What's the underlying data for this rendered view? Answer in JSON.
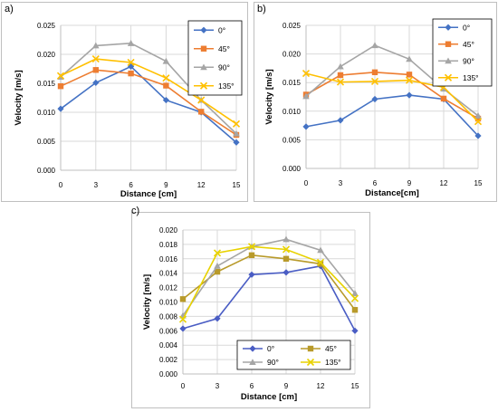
{
  "panel_labels": [
    "a)",
    "b)",
    "c)"
  ],
  "colors": {
    "0°": "#4472C4",
    "45°": "#ED7D31",
    "90°": "#A5A5A5",
    "135°": "#FFC000",
    "c_0°": "#4A5DC4",
    "c_45°": "#B89A2A",
    "c_90°": "#A5A5A5",
    "c_135°": "#E8D200",
    "grid": "#d9d9d9"
  },
  "chart_data": [
    {
      "type": "line",
      "label": "a)",
      "xlabel": "Distance [cm]",
      "ylabel": "Velocity [m/s]",
      "x": [
        0,
        3,
        6,
        9,
        12,
        15
      ],
      "xlim": [
        0,
        15
      ],
      "ylim": [
        0,
        0.025
      ],
      "yticks": [
        "0.000",
        "0.005",
        "0.010",
        "0.015",
        "0.020",
        "0.025"
      ],
      "grid": true,
      "legend": "top-right",
      "series": [
        {
          "name": "0°",
          "marker": "diamond",
          "values": [
            0.0106,
            0.0151,
            0.0179,
            0.0121,
            0.01,
            0.0048
          ]
        },
        {
          "name": "45°",
          "marker": "square",
          "values": [
            0.0145,
            0.0173,
            0.0167,
            0.0146,
            0.0101,
            0.0061
          ]
        },
        {
          "name": "90°",
          "marker": "triangle",
          "values": [
            0.0161,
            0.0215,
            0.0219,
            0.0188,
            0.0121,
            0.0063
          ]
        },
        {
          "name": "135°",
          "marker": "x",
          "values": [
            0.0163,
            0.0192,
            0.0186,
            0.0159,
            0.0121,
            0.008
          ]
        }
      ]
    },
    {
      "type": "line",
      "label": "b)",
      "xlabel": "Distance[cm]",
      "ylabel": "Velocity [m/s]",
      "x": [
        0,
        3,
        6,
        9,
        12,
        15
      ],
      "xlim": [
        0,
        15
      ],
      "ylim": [
        0,
        0.025
      ],
      "yticks": [
        "0.000",
        "0.005",
        "0.010",
        "0.015",
        "0.020",
        "0.025"
      ],
      "grid": true,
      "legend": "top-right",
      "series": [
        {
          "name": "0°",
          "marker": "diamond",
          "values": [
            0.0073,
            0.0084,
            0.0121,
            0.0128,
            0.0121,
            0.0057
          ]
        },
        {
          "name": "45°",
          "marker": "square",
          "values": [
            0.0129,
            0.0163,
            0.0168,
            0.0164,
            0.0122,
            0.0087
          ]
        },
        {
          "name": "90°",
          "marker": "triangle",
          "values": [
            0.0126,
            0.0178,
            0.0215,
            0.0191,
            0.0139,
            0.0092
          ]
        },
        {
          "name": "135°",
          "marker": "x",
          "values": [
            0.0166,
            0.0151,
            0.0152,
            0.0154,
            0.0142,
            0.0082
          ]
        }
      ]
    },
    {
      "type": "line",
      "label": "c)",
      "xlabel": "Distance [cm]",
      "ylabel": "Velocity [m/s]",
      "x": [
        0,
        3,
        6,
        9,
        12,
        15
      ],
      "xlim": [
        0,
        15
      ],
      "ylim": [
        0,
        0.02
      ],
      "yticks": [
        "0.000",
        "0.002",
        "0.004",
        "0.006",
        "0.008",
        "0.010",
        "0.012",
        "0.014",
        "0.016",
        "0.018",
        "0.020"
      ],
      "grid": true,
      "legend": "bottom-center",
      "series": [
        {
          "name": "0°",
          "marker": "diamond",
          "values": [
            0.0063,
            0.0077,
            0.0138,
            0.0141,
            0.015,
            0.006
          ]
        },
        {
          "name": "45°",
          "marker": "square",
          "values": [
            0.0104,
            0.0142,
            0.0165,
            0.016,
            0.0153,
            0.0089
          ]
        },
        {
          "name": "90°",
          "marker": "triangle",
          "values": [
            0.0081,
            0.015,
            0.0177,
            0.0187,
            0.0172,
            0.0112
          ]
        },
        {
          "name": "135°",
          "marker": "x",
          "values": [
            0.0076,
            0.0168,
            0.0177,
            0.0173,
            0.0155,
            0.0105
          ]
        }
      ]
    }
  ]
}
